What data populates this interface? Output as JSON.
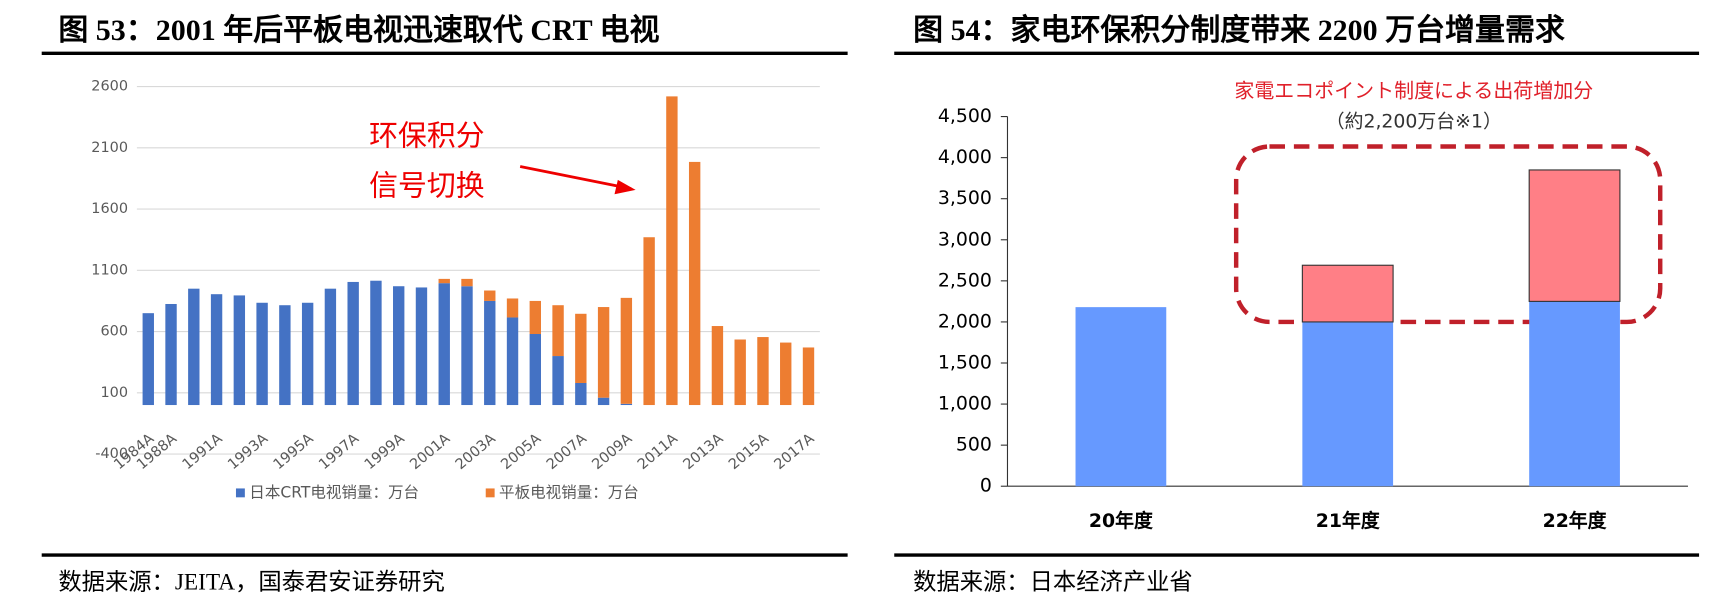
{
  "chart_data": [
    {
      "type": "stacked-bar",
      "title": "图 53：2001 年后平板电视迅速取代 CRT 电视",
      "source": "数据来源：JEITA，国泰君安证券研究",
      "categories": [
        "1984A",
        "1988A",
        null,
        "1991A",
        null,
        "1993A",
        null,
        "1995A",
        null,
        "1997A",
        null,
        "1999A",
        null,
        "2001A",
        null,
        "2003A",
        null,
        "2005A",
        null,
        "2007A",
        null,
        "2009A",
        null,
        "2011A",
        null,
        "2013A",
        null,
        "2015A",
        null,
        "2017A"
      ],
      "series": [
        {
          "name": "日本CRT电视销量：万台",
          "color": "#4472c4",
          "values": [
            750,
            825,
            950,
            905,
            895,
            835,
            815,
            835,
            950,
            1005,
            1015,
            970,
            960,
            995,
            970,
            850,
            715,
            580,
            400,
            180,
            60,
            10,
            0,
            0,
            0,
            0,
            0,
            0,
            0,
            0
          ]
        },
        {
          "name": "平板电视销量：万台",
          "color": "#ed7d31",
          "values": [
            0,
            0,
            0,
            0,
            0,
            0,
            0,
            0,
            0,
            0,
            0,
            0,
            0,
            35,
            60,
            85,
            155,
            270,
            415,
            565,
            740,
            865,
            1370,
            2520,
            1985,
            645,
            535,
            555,
            510,
            470
          ]
        }
      ],
      "ylim": [
        -400,
        2600
      ],
      "yticks": [
        -400,
        100,
        600,
        1100,
        1600,
        2100,
        2600
      ],
      "grid": true,
      "annotations": [
        "环保积分",
        "信号切换"
      ]
    },
    {
      "type": "stacked-bar",
      "title": "图 54：家电环保积分制度带来 2200 万台增量需求",
      "source": "数据来源：日本经济产业省",
      "categories": [
        "20年度",
        "21年度",
        "22年度"
      ],
      "series": [
        {
          "color": "#6699ff",
          "values": [
            2180,
            2000,
            2250
          ]
        },
        {
          "color": "#ff7f86",
          "values": [
            0,
            690,
            1600
          ]
        }
      ],
      "ylim": [
        0,
        4500
      ],
      "yticks": [
        0,
        500,
        {
          "value": 1000,
          "label": "1,000"
        },
        {
          "value": 1500,
          "label": "1,500"
        },
        {
          "value": 2000,
          "label": "2,000"
        },
        {
          "value": 2500,
          "label": "2,500"
        },
        {
          "value": 3000,
          "label": "3,000"
        },
        {
          "value": 3500,
          "label": "3,500"
        },
        {
          "value": 4000,
          "label": "4,000"
        },
        {
          "value": 4500,
          "label": "4,500"
        }
      ],
      "grid": false,
      "annotations": [
        "家電エコポイント制度による出荷増加分",
        "（約2,200万台※1）"
      ]
    }
  ]
}
